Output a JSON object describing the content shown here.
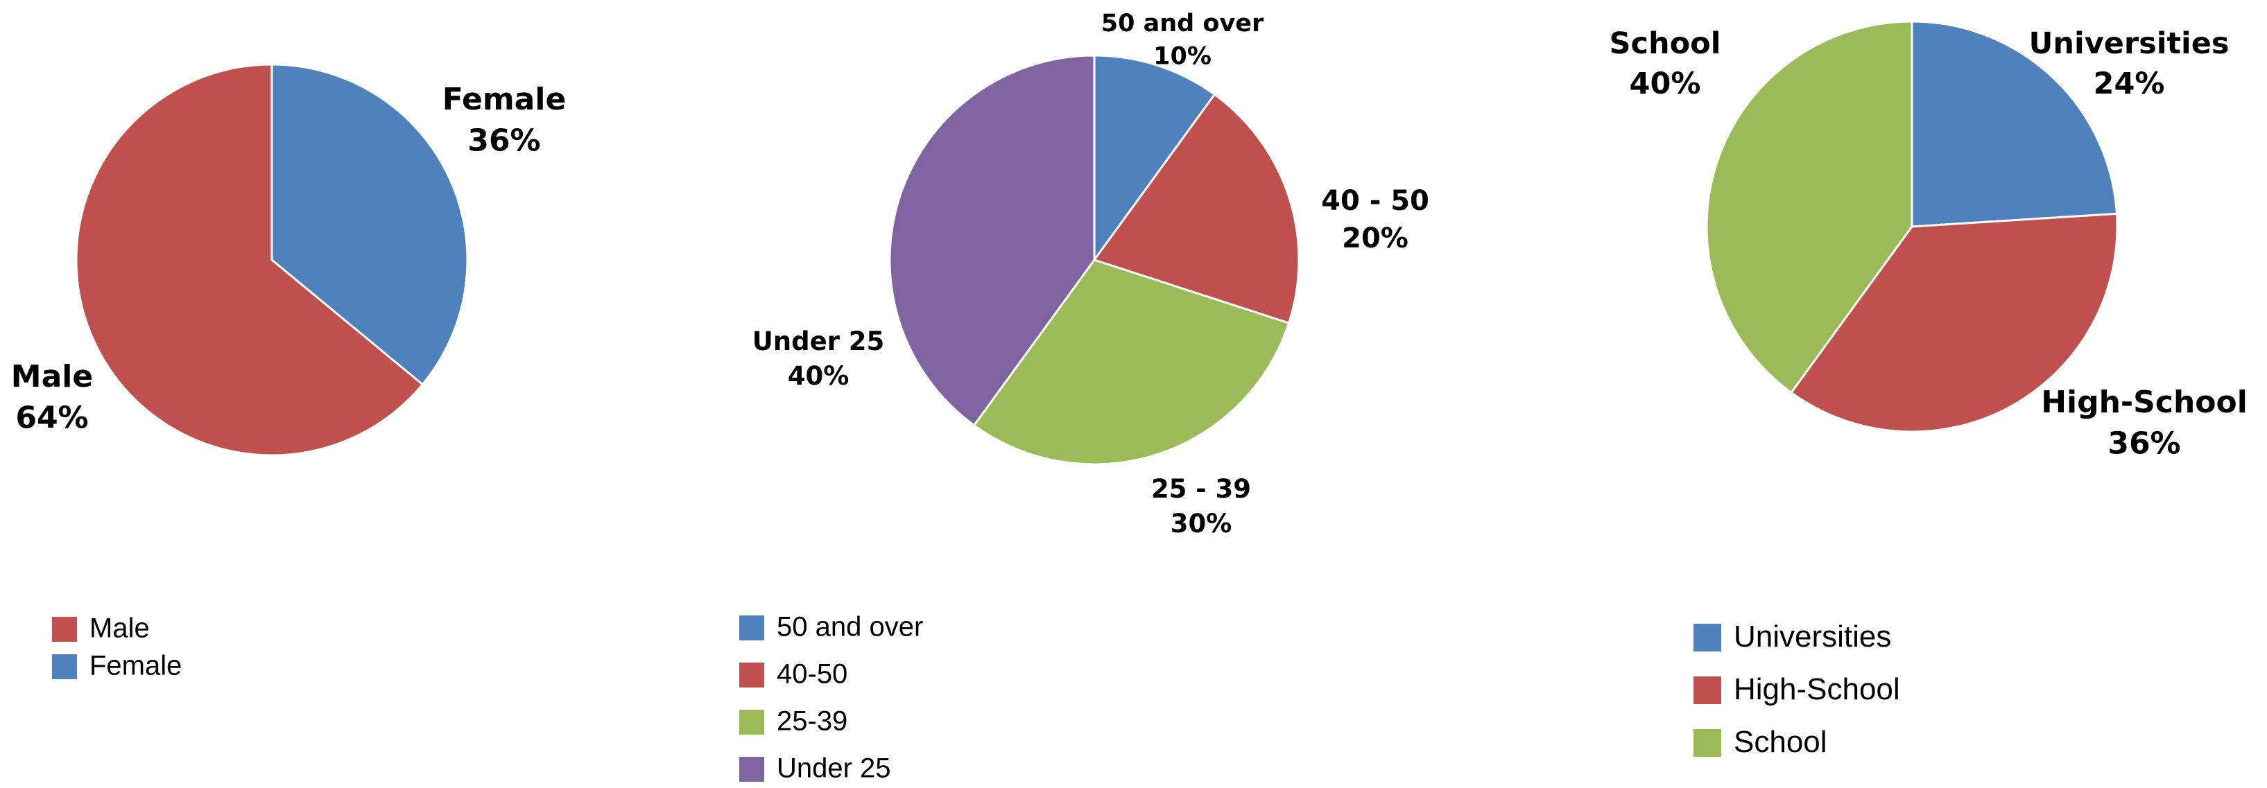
{
  "chart_data": [
    {
      "type": "pie",
      "slices": [
        {
          "label": "Female",
          "value": 36,
          "label_text": "Female",
          "pct_text": "36%",
          "color": "#4f81bd"
        },
        {
          "label": "Male",
          "value": 64,
          "label_text": "Male",
          "pct_text": "64%",
          "color": "#c0504d"
        }
      ],
      "legend": [
        {
          "label": "Male",
          "color": "#c0504d"
        },
        {
          "label": "Female",
          "color": "#4f81bd"
        }
      ]
    },
    {
      "type": "pie",
      "slices": [
        {
          "label": "50 and over",
          "value": 10,
          "label_text": "50 and over",
          "pct_text": "10%",
          "color": "#4f81bd"
        },
        {
          "label": "40-50",
          "value": 20,
          "label_text": "40 - 50",
          "pct_text": "20%",
          "color": "#c0504d"
        },
        {
          "label": "25-39",
          "value": 30,
          "label_text": "25 - 39",
          "pct_text": "30%",
          "color": "#9bbb59"
        },
        {
          "label": "Under 25",
          "value": 40,
          "label_text": "Under 25",
          "pct_text": "40%",
          "color": "#8064a2"
        }
      ],
      "legend": [
        {
          "label": "50 and over",
          "color": "#4f81bd"
        },
        {
          "label": "40-50",
          "color": "#c0504d"
        },
        {
          "label": "25-39",
          "color": "#9bbb59"
        },
        {
          "label": "Under 25",
          "color": "#8064a2"
        }
      ]
    },
    {
      "type": "pie",
      "slices": [
        {
          "label": "Universities",
          "value": 24,
          "label_text": "Universities",
          "pct_text": "24%",
          "color": "#4f81bd"
        },
        {
          "label": "High-School",
          "value": 36,
          "label_text": "High-School",
          "pct_text": "36%",
          "color": "#c0504d"
        },
        {
          "label": "School",
          "value": 40,
          "label_text": "School",
          "pct_text": "40%",
          "color": "#9bbb59"
        }
      ],
      "legend": [
        {
          "label": "Universities",
          "color": "#4f81bd"
        },
        {
          "label": "High-School",
          "color": "#c0504d"
        },
        {
          "label": "School",
          "color": "#9bbb59"
        }
      ]
    }
  ]
}
